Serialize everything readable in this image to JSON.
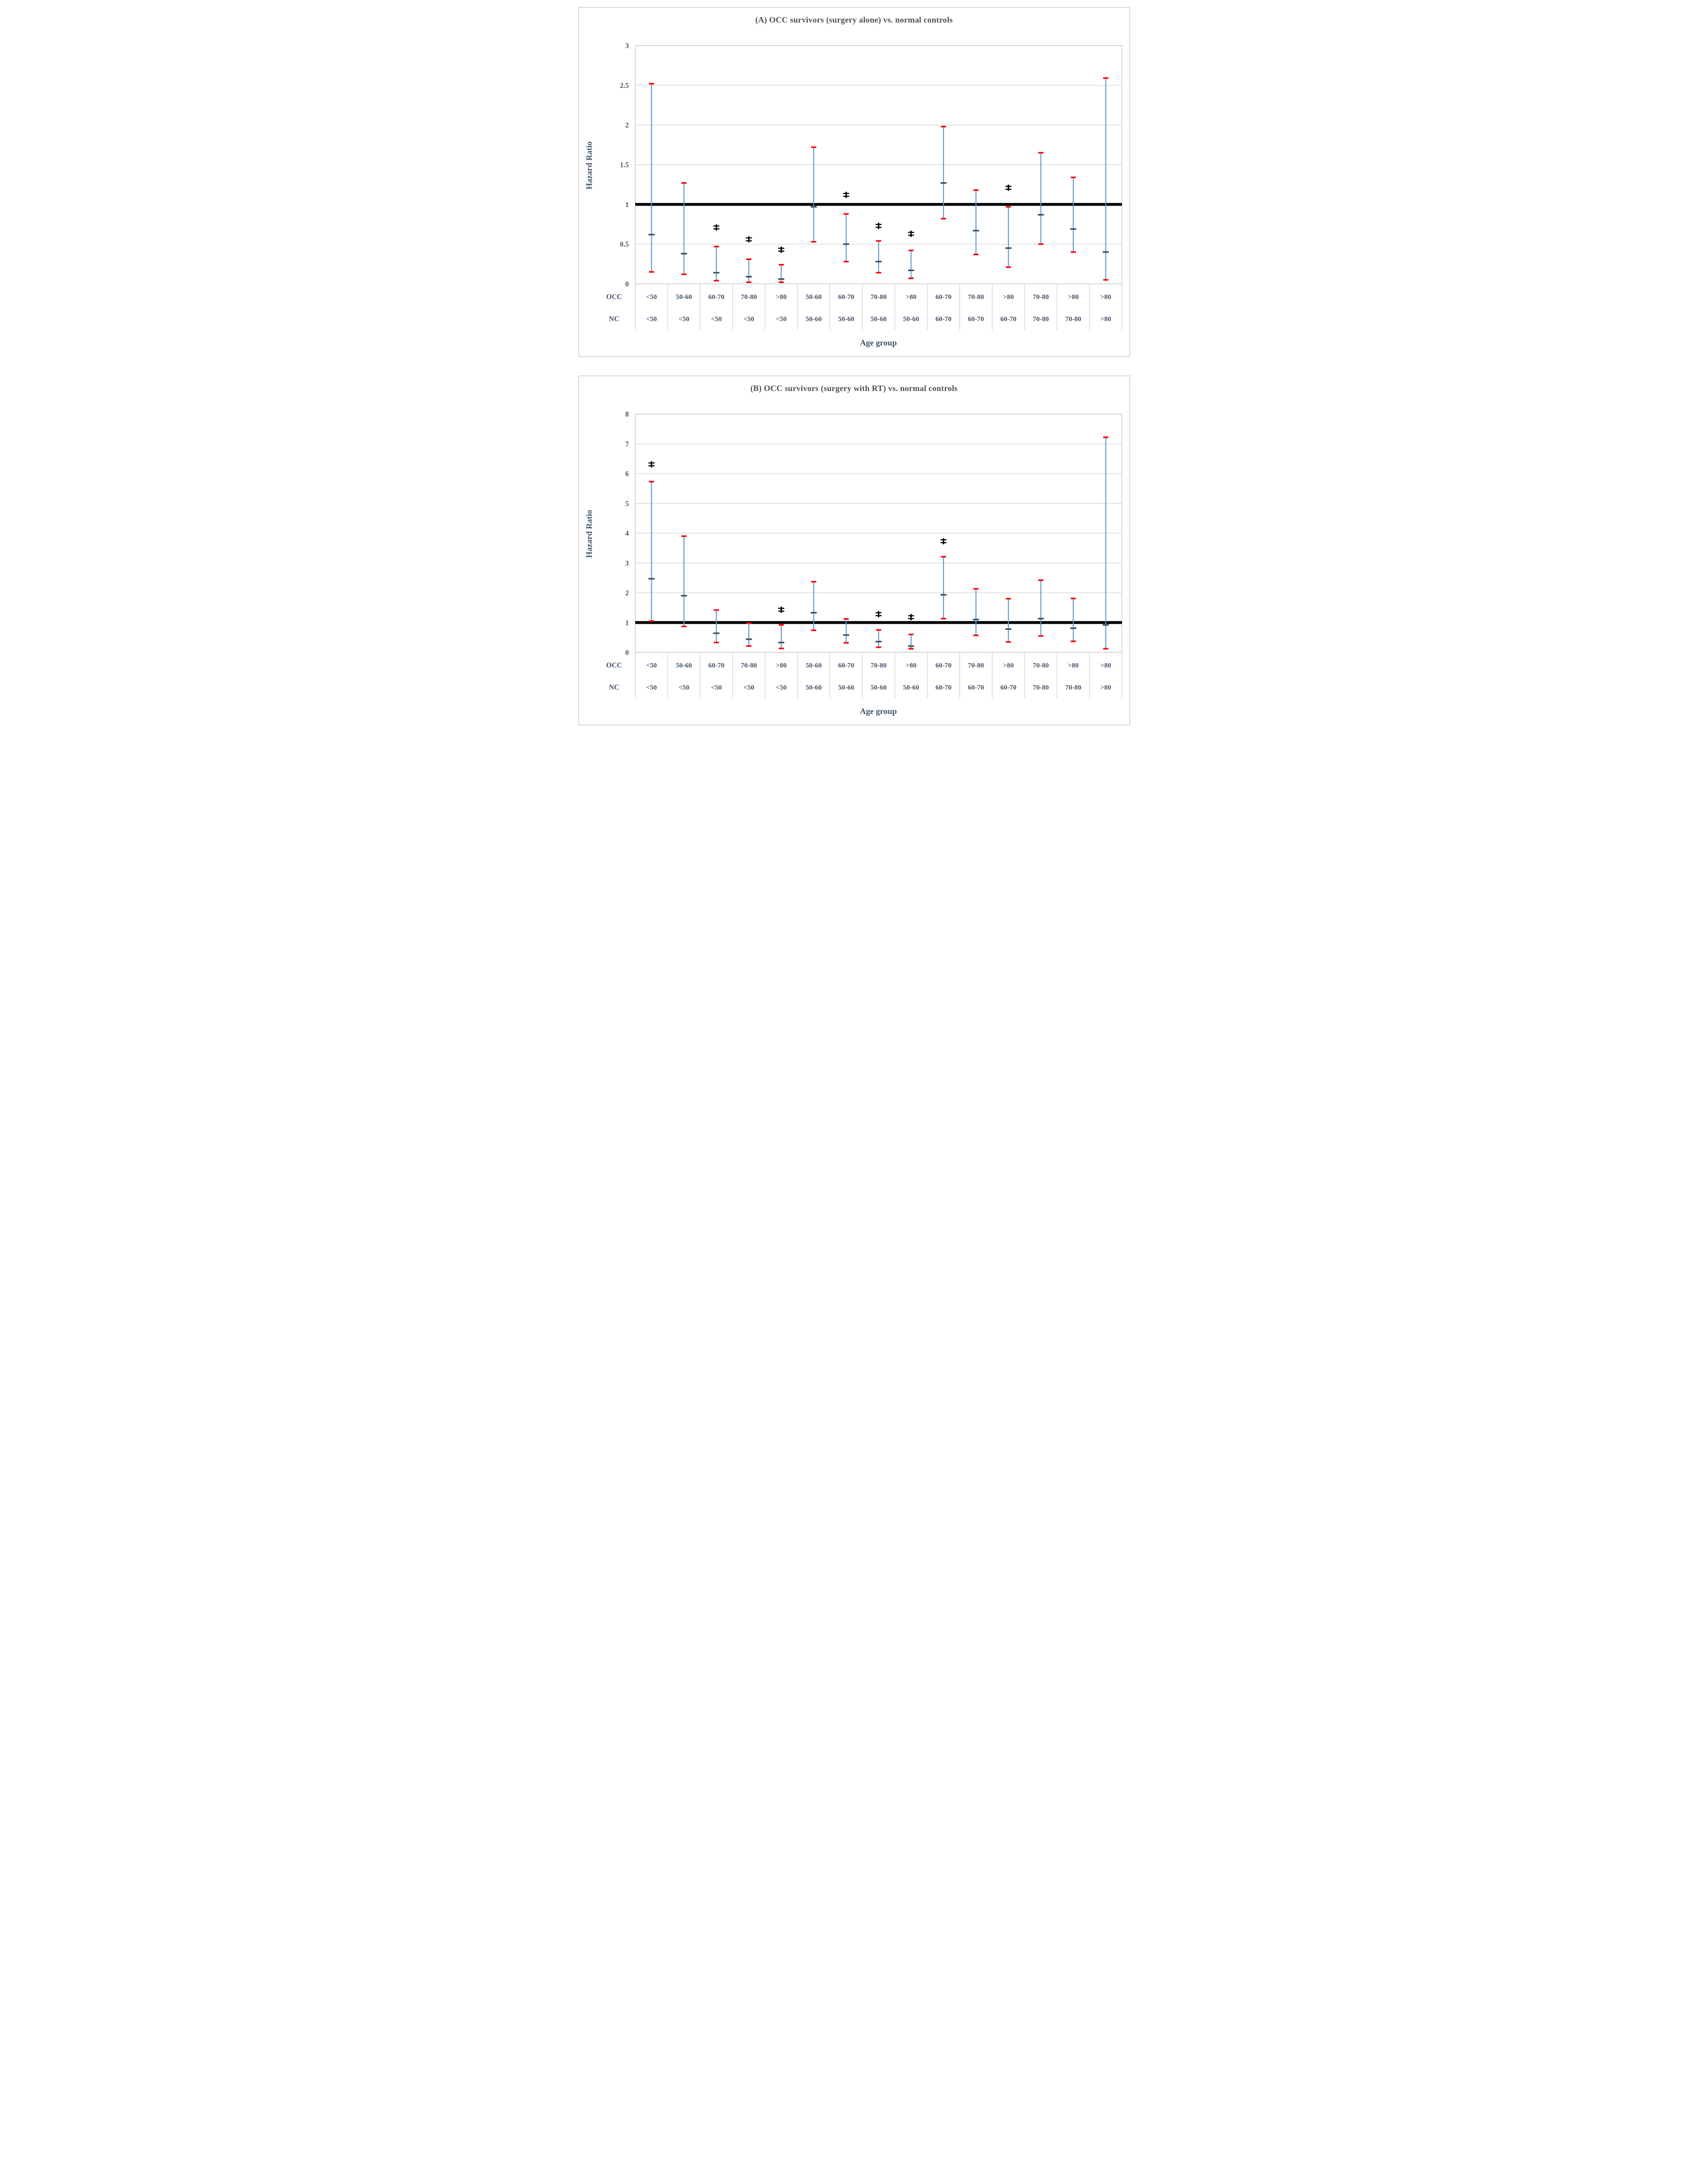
{
  "colors": {
    "ci_line": "#5b9bd5",
    "ci_cap": "#fe0000",
    "mean_tick": "#3f4d63",
    "reference_line": "#000000",
    "gridline": "#d9d9d9",
    "plot_border": "#d0d0d0",
    "separator": "#d9d9d9",
    "axis_text": "#44546a",
    "title_text": "#515155",
    "star": "#000000",
    "panel_border": "#d9d9d9",
    "background": "#ffffff"
  },
  "significance_marker": "*",
  "chart_data": [
    {
      "type": "errorbar",
      "id": "A",
      "title": "(A) OCC survivors (surgery alone) vs. normal controls",
      "ylabel": "Hazard Ratio",
      "xlabel": "Age group",
      "row_headers": {
        "occ": "OCC",
        "nc": "NC"
      },
      "ylim": [
        0,
        3
      ],
      "ytick_step": 0.5,
      "yticks": [
        "0",
        "0.5",
        "1",
        "1.5",
        "2",
        "2.5",
        "3"
      ],
      "reference_line": 1,
      "grid": true,
      "series": [
        {
          "occ": "<50",
          "nc": "<50",
          "upper": 2.52,
          "hr": 0.62,
          "lower": 0.15,
          "sig": null
        },
        {
          "occ": "50-60",
          "nc": "<50",
          "upper": 1.27,
          "hr": 0.38,
          "lower": 0.12,
          "sig": null
        },
        {
          "occ": "60-70",
          "nc": "<50",
          "upper": 0.47,
          "hr": 0.14,
          "lower": 0.04,
          "sig": 0.71
        },
        {
          "occ": "70-80",
          "nc": "<50",
          "upper": 0.31,
          "hr": 0.09,
          "lower": 0.02,
          "sig": 0.56
        },
        {
          "occ": ">80",
          "nc": "<50",
          "upper": 0.24,
          "hr": 0.06,
          "lower": 0.02,
          "sig": 0.43
        },
        {
          "occ": "50-60",
          "nc": "50-60",
          "upper": 1.72,
          "hr": 0.97,
          "lower": 0.53,
          "sig": null
        },
        {
          "occ": "60-70",
          "nc": "50-60",
          "upper": 0.88,
          "hr": 0.5,
          "lower": 0.28,
          "sig": 1.12
        },
        {
          "occ": "70-80",
          "nc": "50-60",
          "upper": 0.54,
          "hr": 0.28,
          "lower": 0.14,
          "sig": 0.73
        },
        {
          "occ": ">80",
          "nc": "50-60",
          "upper": 0.42,
          "hr": 0.17,
          "lower": 0.07,
          "sig": 0.63
        },
        {
          "occ": "60-70",
          "nc": "60-70",
          "upper": 1.98,
          "hr": 1.27,
          "lower": 0.82,
          "sig": null
        },
        {
          "occ": "70-80",
          "nc": "60-70",
          "upper": 1.18,
          "hr": 0.67,
          "lower": 0.37,
          "sig": null
        },
        {
          "occ": ">80",
          "nc": "60-70",
          "upper": 0.97,
          "hr": 0.45,
          "lower": 0.21,
          "sig": 1.21
        },
        {
          "occ": "70-80",
          "nc": "70-80",
          "upper": 1.65,
          "hr": 0.87,
          "lower": 0.5,
          "sig": null
        },
        {
          "occ": ">80",
          "nc": "70-80",
          "upper": 1.34,
          "hr": 0.69,
          "lower": 0.4,
          "sig": null
        },
        {
          "occ": ">80",
          "nc": ">80",
          "upper": 2.59,
          "hr": 0.4,
          "lower": 0.05,
          "sig": null
        }
      ]
    },
    {
      "type": "errorbar",
      "id": "B",
      "title": "(B) OCC survivors (surgery with RT) vs. normal controls",
      "ylabel": "Hazard Ratio",
      "xlabel": "Age group",
      "row_headers": {
        "occ": "OCC",
        "nc": "NC"
      },
      "ylim": [
        0,
        8
      ],
      "ytick_step": 1,
      "yticks": [
        "0",
        "1",
        "2",
        "3",
        "4",
        "5",
        "6",
        "7",
        "8"
      ],
      "reference_line": 1,
      "grid": true,
      "series": [
        {
          "occ": "<50",
          "nc": "<50",
          "upper": 5.73,
          "hr": 2.47,
          "lower": 1.05,
          "sig": 6.31
        },
        {
          "occ": "50-60",
          "nc": "<50",
          "upper": 3.9,
          "hr": 1.9,
          "lower": 0.87,
          "sig": null
        },
        {
          "occ": "60-70",
          "nc": "<50",
          "upper": 1.42,
          "hr": 0.64,
          "lower": 0.33,
          "sig": null
        },
        {
          "occ": "70-80",
          "nc": "<50",
          "upper": 0.98,
          "hr": 0.44,
          "lower": 0.21,
          "sig": null
        },
        {
          "occ": ">80",
          "nc": "<50",
          "upper": 0.92,
          "hr": 0.33,
          "lower": 0.13,
          "sig": 1.43
        },
        {
          "occ": "50-60",
          "nc": "50-60",
          "upper": 2.37,
          "hr": 1.33,
          "lower": 0.74,
          "sig": null
        },
        {
          "occ": "60-70",
          "nc": "50-60",
          "upper": 1.12,
          "hr": 0.58,
          "lower": 0.32,
          "sig": null
        },
        {
          "occ": "70-80",
          "nc": "50-60",
          "upper": 0.75,
          "hr": 0.36,
          "lower": 0.17,
          "sig": 1.28
        },
        {
          "occ": ">80",
          "nc": "50-60",
          "upper": 0.6,
          "hr": 0.21,
          "lower": 0.12,
          "sig": 1.18
        },
        {
          "occ": "60-70",
          "nc": "60-70",
          "upper": 3.21,
          "hr": 1.93,
          "lower": 1.13,
          "sig": 3.73
        },
        {
          "occ": "70-80",
          "nc": "60-70",
          "upper": 2.13,
          "hr": 1.1,
          "lower": 0.57,
          "sig": null
        },
        {
          "occ": ">80",
          "nc": "60-70",
          "upper": 1.8,
          "hr": 0.78,
          "lower": 0.35,
          "sig": null
        },
        {
          "occ": "70-80",
          "nc": "70-80",
          "upper": 2.42,
          "hr": 1.13,
          "lower": 0.55,
          "sig": null
        },
        {
          "occ": ">80",
          "nc": "70-80",
          "upper": 1.81,
          "hr": 0.81,
          "lower": 0.37,
          "sig": null
        },
        {
          "occ": ">80",
          "nc": ">80",
          "upper": 7.22,
          "hr": 0.92,
          "lower": 0.12,
          "sig": null
        }
      ]
    }
  ]
}
